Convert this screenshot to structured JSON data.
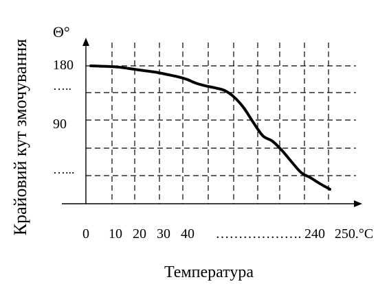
{
  "chart_data": {
    "type": "line",
    "ylabel": "Крайовий кут змочування",
    "xlabel": "Температура",
    "y_symbol": "Θ°",
    "x_tick_labels": [
      "0",
      "10",
      "20",
      "30",
      "40",
      "……………….",
      "240",
      "250.°C"
    ],
    "y_tick_labels": [
      "180",
      "…..",
      "90",
      "…..."
    ],
    "grid": true,
    "series": [
      {
        "x": [
          0,
          10,
          20,
          30,
          40,
          50,
          60,
          70,
          80,
          90,
          100,
          110,
          120,
          130,
          140,
          150,
          160,
          170,
          180,
          190,
          200,
          210,
          220,
          230,
          240,
          250
        ],
        "y": [
          180,
          179.5,
          179,
          178,
          176,
          174,
          172,
          170,
          167,
          164,
          160,
          154,
          150,
          147,
          143,
          133,
          117,
          95,
          75,
          67,
          53,
          36,
          20,
          12,
          3,
          -5
        ]
      }
    ]
  }
}
